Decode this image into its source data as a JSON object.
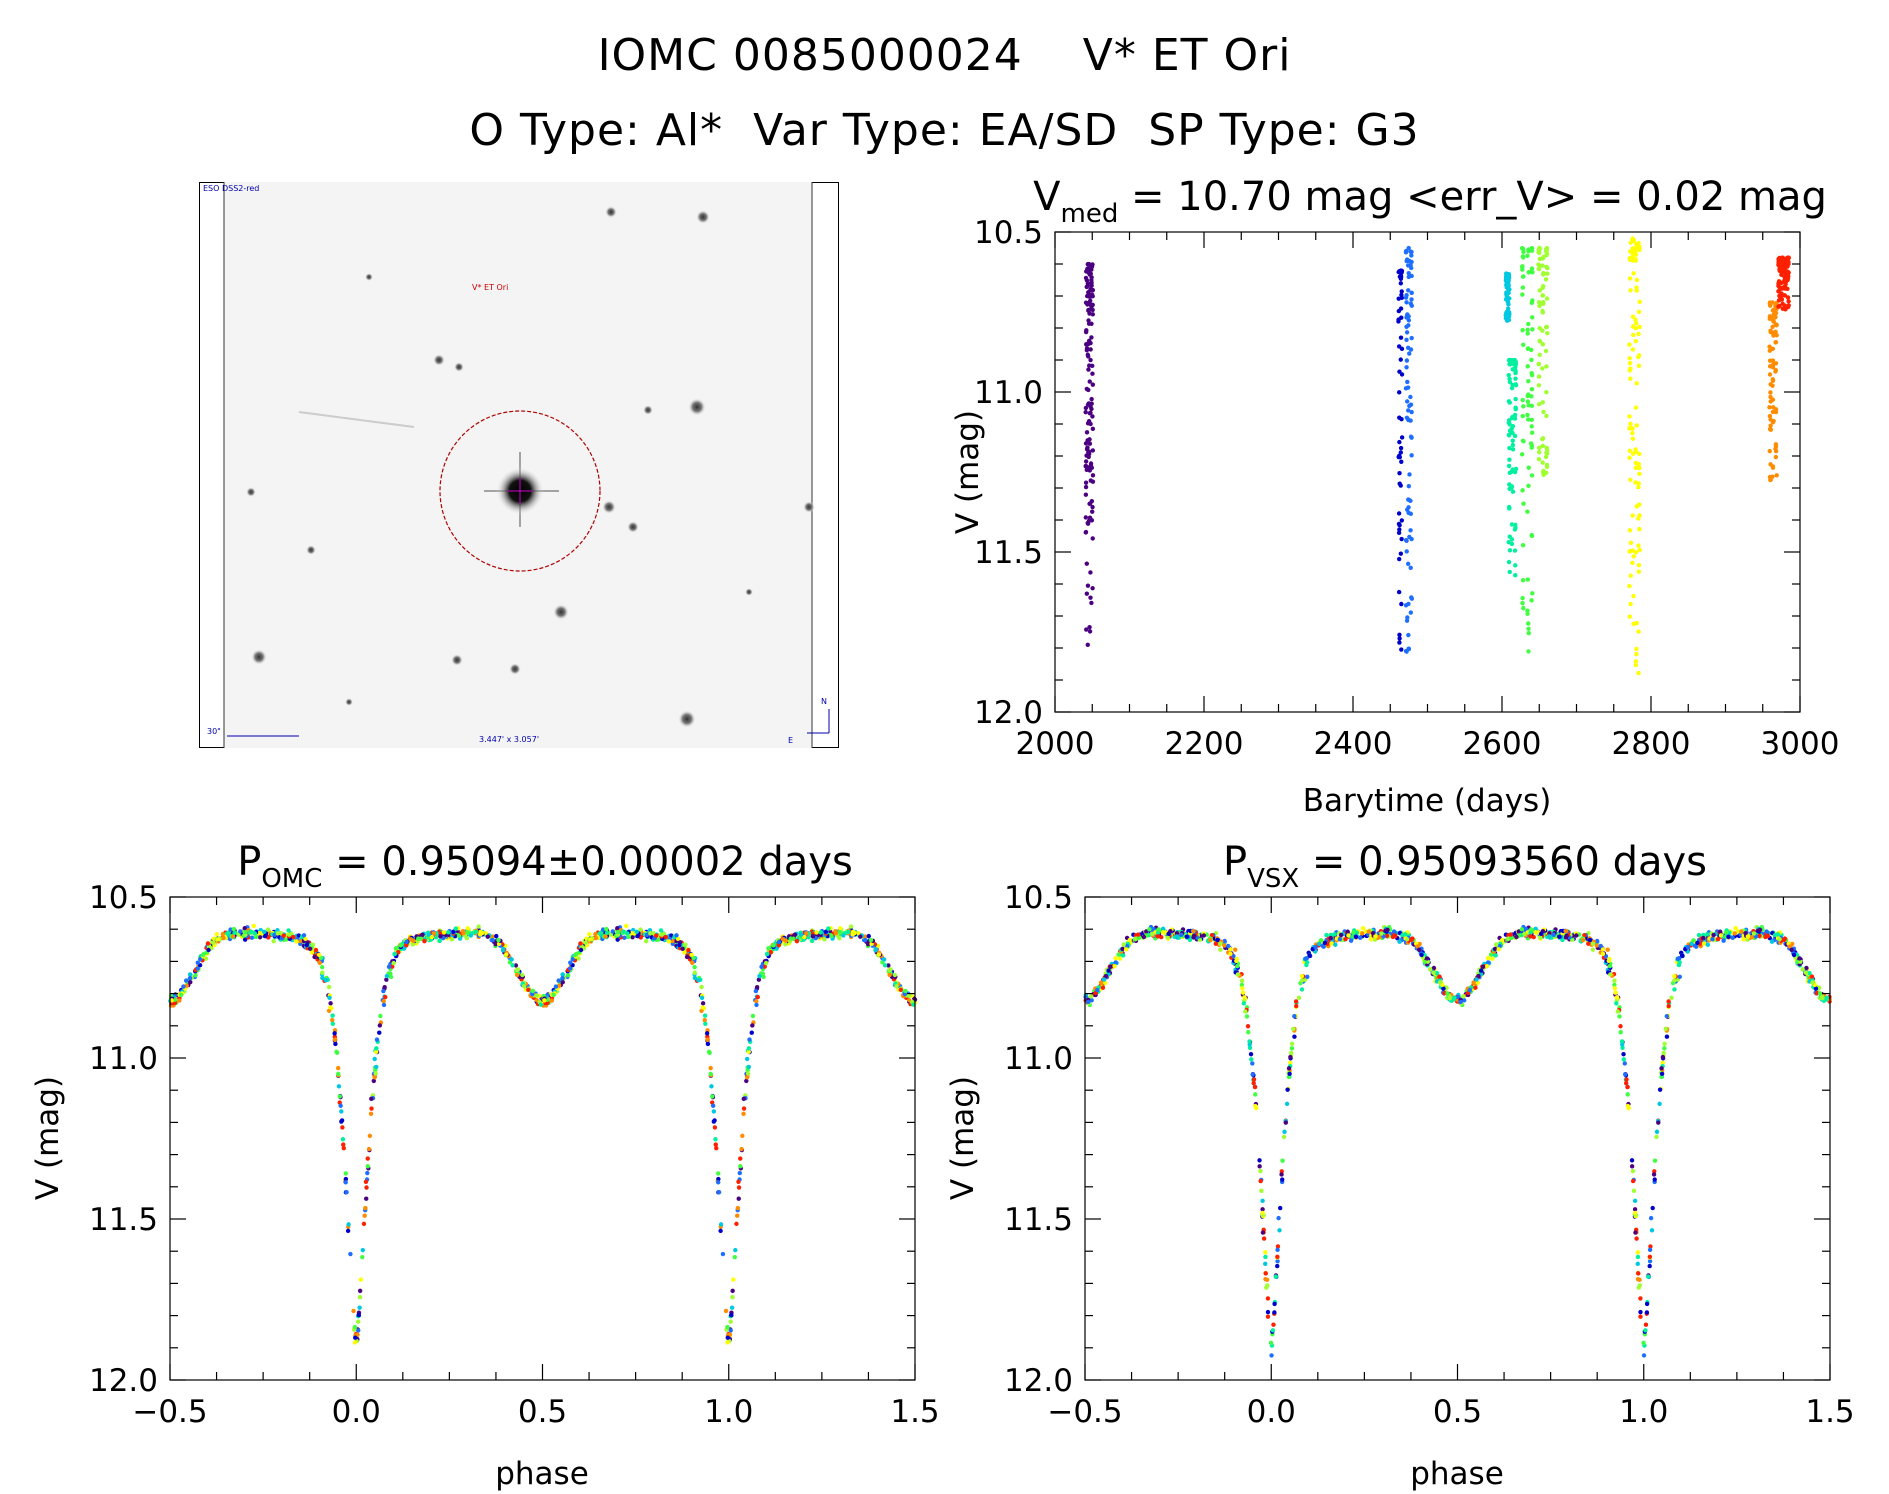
{
  "header": {
    "line1": "IOMC 0085000024    V* ET Ori",
    "line2": "O Type: Al*  Var Type: EA/SD  SP Type: G3"
  },
  "finder": {
    "source_label": "ESO DSS2-red",
    "target_label": "V* ET Ori",
    "scale_label": "30\"",
    "fov_label": "3.447' x 3.057'",
    "north_label": "N",
    "east_label": "E"
  },
  "chart_data": [
    {
      "type": "scatter",
      "id": "light-curve",
      "title_main": "V",
      "title_sub": "med",
      "title_rest": " = 10.70 mag <err_V> = 0.02 mag",
      "xlabel": "Barytime (days)",
      "ylabel": "V (mag)",
      "xlim": [
        2000,
        3000
      ],
      "ylim": [
        12.0,
        10.5
      ],
      "xticks": [
        "2000",
        "2200",
        "2400",
        "2600",
        "2800",
        "3000"
      ],
      "yticks": [
        "10.5",
        "11.0",
        "11.5",
        "12.0"
      ],
      "groups": [
        {
          "color": "#4B0082",
          "x": [
            2042,
            2044,
            2046,
            2048,
            2050
          ],
          "ymin": 10.6,
          "ymax": 11.8
        },
        {
          "color": "#0000cc",
          "x": [
            2462,
            2465
          ],
          "ymin": 10.62,
          "ymax": 11.82
        },
        {
          "color": "#1e6fff",
          "x": [
            2472,
            2475,
            2478
          ],
          "ymin": 10.55,
          "ymax": 11.9
        },
        {
          "color": "#00c8e0",
          "x": [
            2606,
            2609
          ],
          "ymin": 10.63,
          "ymax": 10.78
        },
        {
          "color": "#00f0a0",
          "x": [
            2610,
            2614,
            2618
          ],
          "ymin": 10.9,
          "ymax": 11.6
        },
        {
          "color": "#40ff40",
          "x": [
            2628,
            2635,
            2640
          ],
          "ymin": 10.55,
          "ymax": 11.82
        },
        {
          "color": "#a0ff30",
          "x": [
            2650,
            2655,
            2660
          ],
          "ymin": 10.55,
          "ymax": 11.3
        },
        {
          "color": "#ffff00",
          "x": [
            2772,
            2776,
            2780,
            2784
          ],
          "ymin": 10.52,
          "ymax": 11.88
        },
        {
          "color": "#ff8c00",
          "x": [
            2960,
            2964,
            2968
          ],
          "ymin": 10.72,
          "ymax": 11.28
        },
        {
          "color": "#ff2000",
          "x": [
            2972,
            2976,
            2980,
            2984
          ],
          "ymin": 10.58,
          "ymax": 10.75
        }
      ]
    },
    {
      "type": "scatter",
      "id": "phase-omc",
      "title_main": "P",
      "title_sub": "OMC",
      "title_rest": " = 0.95094±0.00002 days",
      "xlabel": "phase",
      "ylabel": "V (mag)",
      "xlim": [
        -0.5,
        1.5
      ],
      "ylim": [
        12.0,
        10.5
      ],
      "xticks": [
        "−0.5",
        "0.0",
        "0.5",
        "1.0",
        "1.5"
      ],
      "yticks": [
        "10.5",
        "11.0",
        "11.5",
        "12.0"
      ],
      "model": {
        "max_mag": 10.6,
        "primary_min": 11.85,
        "secondary_min": 10.82
      },
      "palette": [
        "#4B0082",
        "#0000cc",
        "#1e6fff",
        "#00c8e0",
        "#00f0a0",
        "#40ff40",
        "#a0ff30",
        "#ffff00",
        "#ff8c00",
        "#ff2000"
      ]
    },
    {
      "type": "scatter",
      "id": "phase-vsx",
      "title_main": "P",
      "title_sub": "VSX",
      "title_rest": " = 0.95093560 days",
      "xlabel": "phase",
      "ylabel": "V (mag)",
      "xlim": [
        -0.5,
        1.5
      ],
      "ylim": [
        12.0,
        10.5
      ],
      "xticks": [
        "−0.5",
        "0.0",
        "0.5",
        "1.0",
        "1.5"
      ],
      "yticks": [
        "10.5",
        "11.0",
        "11.5",
        "12.0"
      ],
      "model": {
        "max_mag": 10.6,
        "primary_min": 11.85,
        "secondary_min": 10.82
      },
      "palette": [
        "#4B0082",
        "#0000cc",
        "#1e6fff",
        "#00c8e0",
        "#00f0a0",
        "#40ff40",
        "#a0ff30",
        "#ffff00",
        "#ff8c00",
        "#ff2000"
      ]
    }
  ]
}
